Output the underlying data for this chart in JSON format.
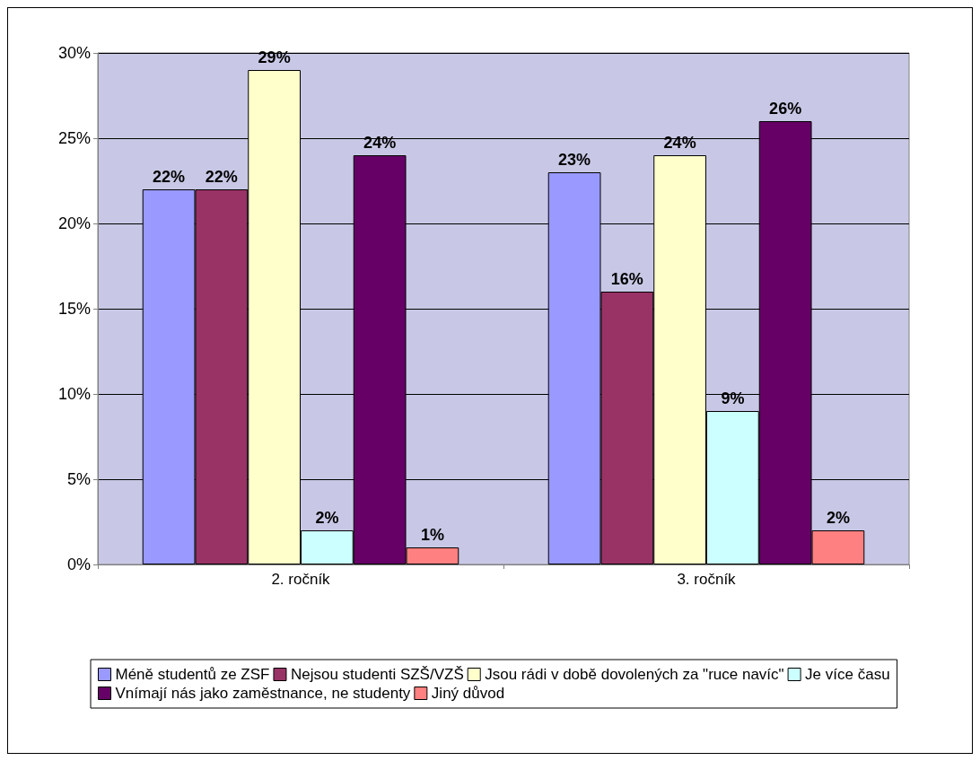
{
  "chart_data": {
    "type": "bar",
    "categories": [
      "2. ročník",
      "3. ročník"
    ],
    "series": [
      {
        "name": "Méně studentů ze ZSF",
        "color": "#9999ff",
        "values": [
          22,
          23
        ],
        "value_labels": [
          "22%",
          "23%"
        ]
      },
      {
        "name": "Nejsou studenti SZŠ/VZŠ",
        "color": "#993366",
        "values": [
          22,
          16
        ],
        "value_labels": [
          "22%",
          "16%"
        ]
      },
      {
        "name": "Jsou rádi v době dovolených za \"ruce navíc\"",
        "color": "#ffffcc",
        "values": [
          29,
          24
        ],
        "value_labels": [
          "29%",
          "24%"
        ]
      },
      {
        "name": "Je více času",
        "color": "#ccffff",
        "values": [
          2,
          9
        ],
        "value_labels": [
          "2%",
          "9%"
        ]
      },
      {
        "name": "Vnímají nás jako zaměstnance, ne studenty",
        "color": "#660066",
        "values": [
          24,
          26
        ],
        "value_labels": [
          "24%",
          "26%"
        ]
      },
      {
        "name": "Jiný důvod",
        "color": "#ff8080",
        "values": [
          1,
          2
        ],
        "value_labels": [
          "1%",
          "2%"
        ]
      }
    ],
    "ylim": [
      0,
      30
    ],
    "yticks": [
      {
        "value": 0,
        "label": "0%"
      },
      {
        "value": 5,
        "label": "5%"
      },
      {
        "value": 10,
        "label": "10%"
      },
      {
        "value": 15,
        "label": "15%"
      },
      {
        "value": 20,
        "label": "20%"
      },
      {
        "value": 25,
        "label": "25%"
      },
      {
        "value": 30,
        "label": "30%"
      }
    ],
    "grid": "y",
    "legend": "bottom"
  }
}
